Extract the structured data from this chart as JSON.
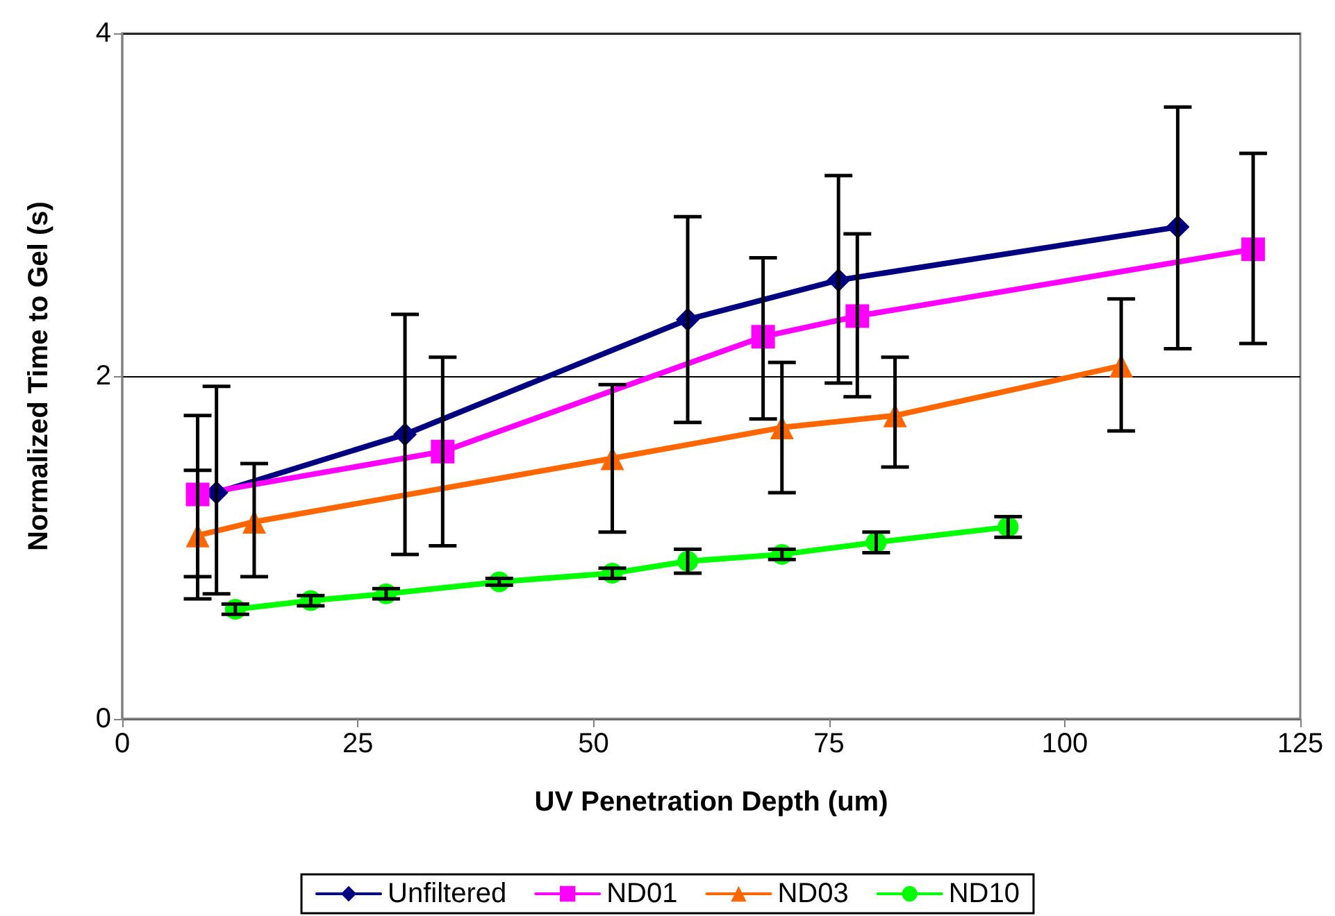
{
  "chart_data": {
    "type": "line",
    "xlabel": "UV Penetration Depth (um)",
    "ylabel": "Normalized Time to Gel (s)",
    "xlim": [
      0,
      125
    ],
    "xticks": [
      0,
      25,
      50,
      75,
      100,
      125
    ],
    "ylim": [
      0,
      4
    ],
    "yticks": [
      0,
      2,
      4
    ],
    "grid": "y",
    "legend": "bottom",
    "series": [
      {
        "name": "Unfiltered",
        "color": "#000080",
        "marker": "diamond",
        "x": [
          10,
          30,
          60,
          76,
          112
        ],
        "values": [
          1.32,
          1.66,
          2.33,
          2.56,
          2.87
        ],
        "errors": [
          [
            0.73,
            1.94
          ],
          [
            0.96,
            2.36
          ],
          [
            1.73,
            2.93
          ],
          [
            1.96,
            3.17
          ],
          [
            2.16,
            3.57
          ]
        ]
      },
      {
        "name": "ND01",
        "color": "#ff00ff",
        "marker": "square",
        "x": [
          8,
          34,
          68,
          78,
          120
        ],
        "values": [
          1.31,
          1.56,
          2.23,
          2.35,
          2.74
        ],
        "errors": [
          [
            0.83,
            1.77
          ],
          [
            1.01,
            2.11
          ],
          [
            1.75,
            2.69
          ],
          [
            1.88,
            2.83
          ],
          [
            2.19,
            3.3
          ]
        ]
      },
      {
        "name": "ND03",
        "color": "#ff6600",
        "marker": "triangle",
        "x": [
          8,
          14,
          52,
          70,
          82,
          106
        ],
        "values": [
          1.07,
          1.15,
          1.52,
          1.7,
          1.77,
          2.06
        ],
        "errors": [
          [
            0.7,
            1.45
          ],
          [
            0.83,
            1.49
          ],
          [
            1.09,
            1.95
          ],
          [
            1.32,
            2.08
          ],
          [
            1.47,
            2.11
          ],
          [
            1.68,
            2.45
          ]
        ]
      },
      {
        "name": "ND10",
        "color": "#00ff00",
        "marker": "circle",
        "x": [
          12,
          20,
          28,
          40,
          52,
          60,
          70,
          80,
          94
        ],
        "values": [
          0.64,
          0.69,
          0.73,
          0.8,
          0.85,
          0.92,
          0.96,
          1.03,
          1.12
        ],
        "errors": [
          0.03,
          0.03,
          0.03,
          0.02,
          0.03,
          0.07,
          0.03,
          0.06,
          0.06
        ]
      }
    ]
  }
}
